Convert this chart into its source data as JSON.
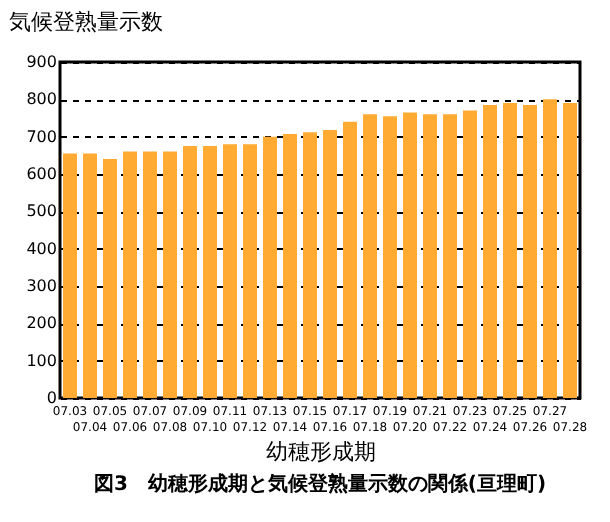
{
  "chart_data": {
    "type": "bar",
    "ylabel": "気候登熟量示数",
    "xlabel": "幼穂形成期",
    "annotations": [
      "図3　幼穂形成期と気候登熟量示数の関係(亘理町)"
    ],
    "categories": [
      "07.03",
      "07.04",
      "07.05",
      "07.06",
      "07.07",
      "07.08",
      "07.09",
      "07.10",
      "07.11",
      "07.12",
      "07.13",
      "07.14",
      "07.15",
      "07.16",
      "07.17",
      "07.18",
      "07.19",
      "07.20",
      "07.21",
      "07.22",
      "07.23",
      "07.24",
      "07.25",
      "07.26",
      "07.27",
      "07.28"
    ],
    "values": [
      655,
      655,
      640,
      660,
      660,
      660,
      675,
      675,
      680,
      680,
      700,
      707,
      712,
      718,
      740,
      760,
      755,
      765,
      760,
      760,
      770,
      785,
      790,
      785,
      800,
      790
    ],
    "color": "#ffaa33",
    "ylim": [
      0,
      900
    ],
    "yticks": [
      0,
      100,
      200,
      300,
      400,
      500,
      600,
      700,
      800,
      900
    ],
    "grid": "y"
  }
}
